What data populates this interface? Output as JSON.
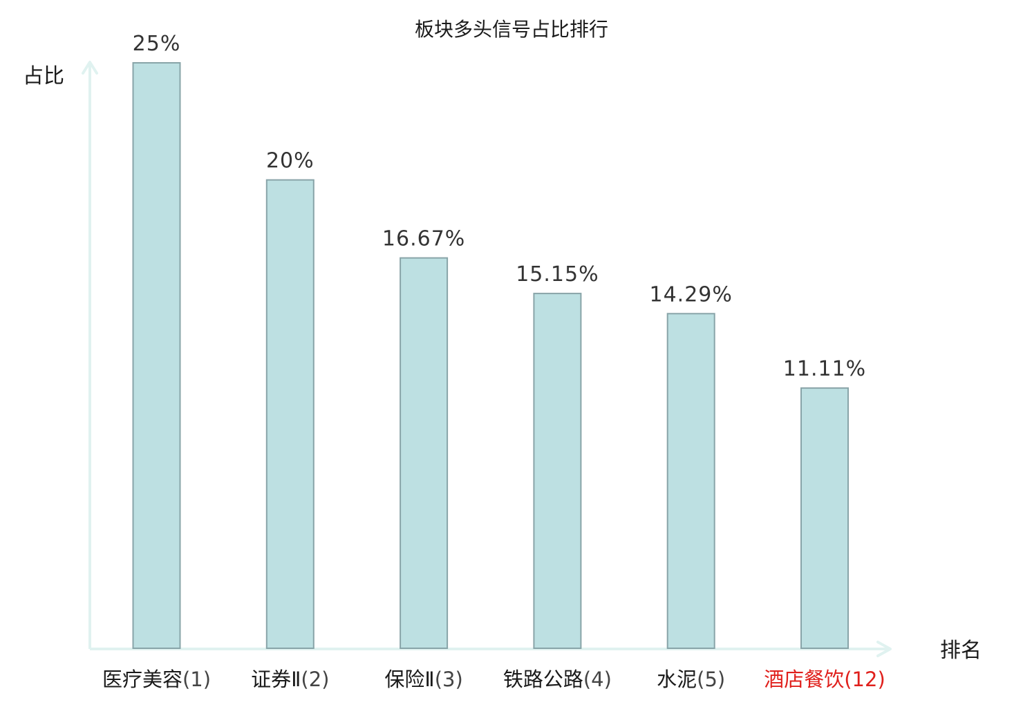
{
  "chart_data": {
    "type": "bar",
    "title": "板块多头信号占比排行",
    "xlabel": "排名",
    "ylabel": "占比",
    "categories": [
      "医疗美容",
      "证券Ⅱ",
      "保险Ⅱ",
      "铁路公路",
      "水泥",
      "酒店餐饮"
    ],
    "ranks": [
      "(1)",
      "(2)",
      "(3)",
      "(4)",
      "(5)",
      "(12)"
    ],
    "values": [
      25,
      20,
      16.67,
      15.15,
      14.29,
      11.11
    ],
    "value_labels": [
      "25%",
      "20%",
      "16.67%",
      "15.15%",
      "14.29%",
      "11.11%"
    ],
    "highlighted": [
      false,
      false,
      false,
      false,
      false,
      true
    ],
    "ylim": [
      0,
      25
    ],
    "grid": false,
    "legend": "none"
  },
  "colors": {
    "bar_fill": "#bde0e2",
    "bar_stroke": "#88a4a8",
    "axis": "#e0f2f0",
    "highlight_label": "#e0201c",
    "value_label": "#333333",
    "text": "#1a1a1a"
  }
}
